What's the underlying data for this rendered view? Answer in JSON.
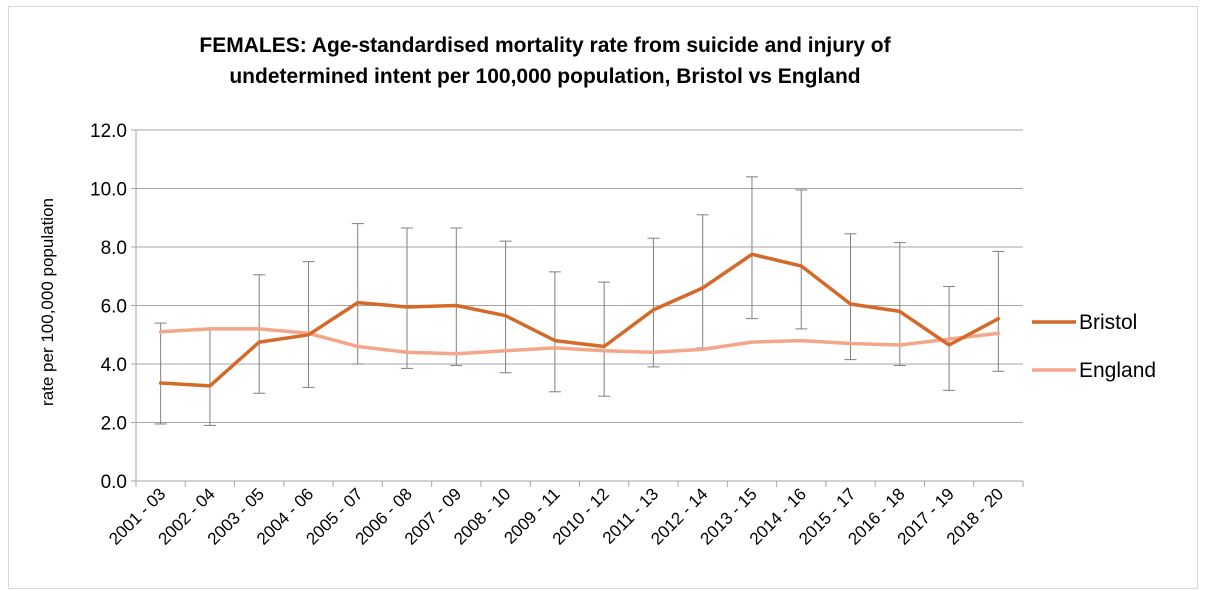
{
  "chart_data": {
    "type": "line",
    "title_lines": [
      "FEMALES: Age-standardised mortality rate from suicide and injury of",
      "undetermined intent per 100,000 population, Bristol vs England"
    ],
    "ylabel": "rate per 100,000 population",
    "xlabel": "",
    "ylim": [
      0,
      12
    ],
    "y_ticks": [
      "0.0",
      "2.0",
      "4.0",
      "6.0",
      "8.0",
      "10.0",
      "12.0"
    ],
    "grid": true,
    "legend_position": "right",
    "categories": [
      "2001 - 03",
      "2002 - 04",
      "2003 - 05",
      "2004 - 06",
      "2005 - 07",
      "2006 - 08",
      "2007 - 09",
      "2008 - 10",
      "2009 - 11",
      "2010 - 12",
      "2011 - 13",
      "2012 - 14",
      "2013 - 15",
      "2014 - 16",
      "2015 - 17",
      "2016 - 18",
      "2017 - 19",
      "2018 - 20"
    ],
    "series": [
      {
        "name": "Bristol",
        "color": "#d46a2a",
        "values": [
          3.35,
          3.25,
          4.75,
          5.0,
          6.1,
          5.95,
          6.0,
          5.65,
          4.8,
          4.6,
          5.85,
          6.6,
          7.75,
          7.35,
          6.05,
          5.8,
          4.65,
          5.55
        ],
        "error_low": [
          1.95,
          1.9,
          3.0,
          3.2,
          4.0,
          3.85,
          3.95,
          3.7,
          3.05,
          2.9,
          3.9,
          4.55,
          5.55,
          5.2,
          4.15,
          3.95,
          3.1,
          3.75
        ],
        "error_high": [
          5.4,
          5.2,
          7.05,
          7.5,
          8.8,
          8.65,
          8.65,
          8.2,
          7.15,
          6.8,
          8.3,
          9.1,
          10.4,
          9.95,
          8.45,
          8.15,
          6.65,
          7.85
        ]
      },
      {
        "name": "England",
        "color": "#f4a68a",
        "values": [
          5.1,
          5.2,
          5.2,
          5.05,
          4.6,
          4.4,
          4.35,
          4.45,
          4.55,
          4.45,
          4.4,
          4.5,
          4.75,
          4.8,
          4.7,
          4.65,
          4.85,
          5.05
        ]
      }
    ],
    "error_bar_color": "#808080"
  }
}
